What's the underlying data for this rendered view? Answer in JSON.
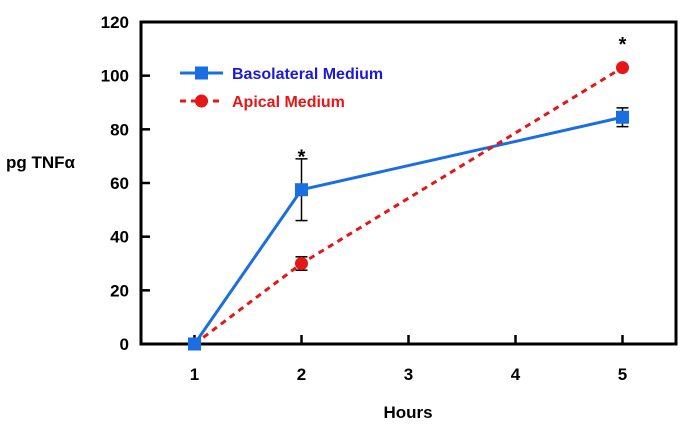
{
  "chart_data": {
    "type": "line",
    "xlabel": "Hours",
    "ylabel": "pg TNFα",
    "xlim": [
      0.5,
      5.5
    ],
    "ylim": [
      0,
      120
    ],
    "x_ticks": [
      1,
      2,
      3,
      4,
      5
    ],
    "y_ticks": [
      0,
      20,
      40,
      60,
      80,
      100,
      120
    ],
    "grid": false,
    "legend_position": "top-left",
    "series": [
      {
        "name": "Basolateral Medium",
        "color": "#1a6ee0",
        "line_style": "solid",
        "marker": "square",
        "x": [
          1,
          2,
          5
        ],
        "y": [
          0,
          57.5,
          84.5
        ],
        "error": [
          0,
          11.5,
          3.5
        ]
      },
      {
        "name": "Apical Medium",
        "color": "#e51616",
        "line_style": "dashed",
        "marker": "circle",
        "x": [
          1,
          2,
          5
        ],
        "y": [
          0,
          30,
          103
        ],
        "error": [
          0,
          2.5,
          0
        ]
      }
    ],
    "legend_text_colors": [
      "#1a1ad8",
      "#e51616"
    ],
    "annotations": [
      {
        "text": "*",
        "x": 2,
        "y": 71
      },
      {
        "text": "*",
        "x": 5,
        "y": 113
      }
    ]
  }
}
